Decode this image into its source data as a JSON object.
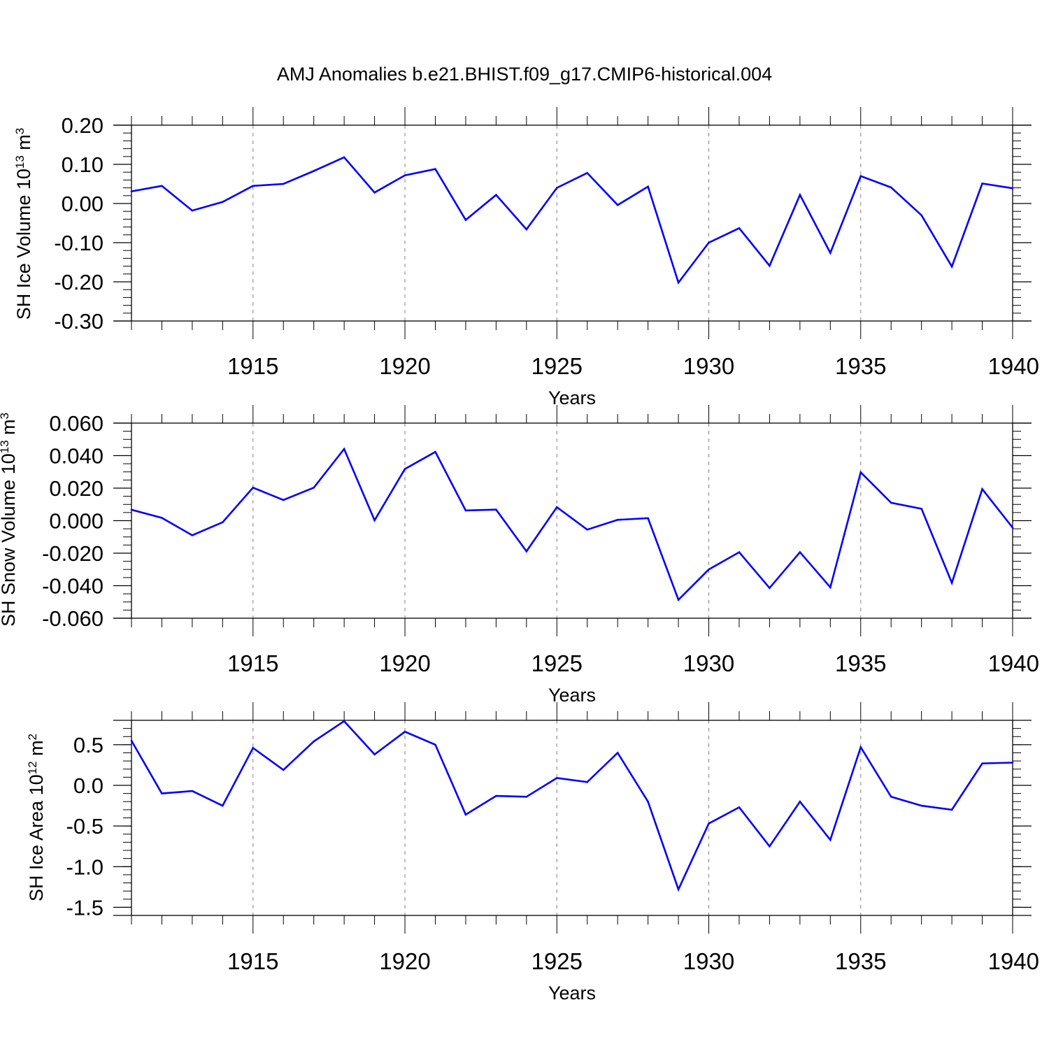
{
  "figure": {
    "title": "AMJ Anomalies b.e21.BHIST.f09_g17.CMIP6-historical.004"
  },
  "colors": {
    "series": "#0000ff",
    "axis": "#000000",
    "grid": "#808080"
  },
  "chart_data": [
    {
      "type": "line",
      "ylabel": {
        "text": "SH Ice Volume 10",
        "sup": "13",
        "unit": " m",
        "unit_sup": "3"
      },
      "xlabel": "Years",
      "xlim": [
        1911,
        1940
      ],
      "ylim": [
        -0.3,
        0.2
      ],
      "y_ticks": [
        0.2,
        0.1,
        0.0,
        -0.1,
        -0.2,
        -0.3
      ],
      "y_tick_labels": [
        "0.20",
        "0.10",
        "0.00",
        "-0.10",
        "-0.20",
        "-0.30"
      ],
      "y_minor_step": 0.02,
      "x_ticks": [
        1915,
        1920,
        1925,
        1930,
        1935,
        1940
      ],
      "x_tick_labels": [
        "1915",
        "1920",
        "1925",
        "1930",
        "1935",
        "1940"
      ],
      "x_gridlines": [
        1915,
        1920,
        1925,
        1930,
        1935
      ],
      "x": [
        1911,
        1912,
        1913,
        1914,
        1915,
        1916,
        1917,
        1918,
        1919,
        1920,
        1921,
        1922,
        1923,
        1924,
        1925,
        1926,
        1927,
        1928,
        1929,
        1930,
        1931,
        1932,
        1933,
        1934,
        1935,
        1936,
        1937,
        1938,
        1939,
        1940
      ],
      "values": [
        0.031,
        0.045,
        -0.018,
        0.004,
        0.045,
        0.05,
        0.083,
        0.118,
        0.028,
        0.072,
        0.088,
        -0.042,
        0.022,
        -0.066,
        0.04,
        0.078,
        -0.004,
        0.043,
        -0.202,
        -0.1,
        -0.063,
        -0.159,
        0.022,
        -0.126,
        0.07,
        0.041,
        -0.03,
        -0.161,
        0.051,
        0.039
      ]
    },
    {
      "type": "line",
      "ylabel": {
        "text": "SH Snow Volume 10",
        "sup": "13",
        "unit": " m",
        "unit_sup": "3"
      },
      "xlabel": "Years",
      "xlim": [
        1911,
        1940
      ],
      "ylim": [
        -0.06,
        0.06
      ],
      "y_ticks": [
        0.06,
        0.04,
        0.02,
        0.0,
        -0.02,
        -0.04,
        -0.06
      ],
      "y_tick_labels": [
        "0.060",
        "0.040",
        "0.020",
        "0.000",
        "-0.020",
        "-0.040",
        "-0.060"
      ],
      "y_minor_step": 0.005,
      "x_ticks": [
        1915,
        1920,
        1925,
        1930,
        1935,
        1940
      ],
      "x_tick_labels": [
        "1915",
        "1920",
        "1925",
        "1930",
        "1935",
        "1940"
      ],
      "x_gridlines": [
        1915,
        1920,
        1925,
        1930,
        1935
      ],
      "x": [
        1911,
        1912,
        1913,
        1914,
        1915,
        1916,
        1917,
        1918,
        1919,
        1920,
        1921,
        1922,
        1923,
        1924,
        1925,
        1926,
        1927,
        1928,
        1929,
        1930,
        1931,
        1932,
        1933,
        1934,
        1935,
        1936,
        1937,
        1938,
        1939,
        1940
      ],
      "values": [
        0.0067,
        0.0017,
        -0.009,
        -0.001,
        0.0203,
        0.0127,
        0.0203,
        0.0441,
        0.0002,
        0.0318,
        0.0423,
        0.0063,
        0.0068,
        -0.0189,
        0.0083,
        -0.0055,
        0.0005,
        0.0015,
        -0.0487,
        -0.03,
        -0.0194,
        -0.0414,
        -0.0194,
        -0.041,
        0.0297,
        0.011,
        0.0073,
        -0.0383,
        0.0194,
        -0.0043
      ]
    },
    {
      "type": "line",
      "ylabel": {
        "text": "SH Ice Area 10",
        "sup": "12",
        "unit": " m",
        "unit_sup": "2"
      },
      "xlabel": "Years",
      "xlim": [
        1911,
        1940
      ],
      "ylim": [
        -1.6,
        0.8
      ],
      "y_ticks": [
        0.5,
        0.0,
        -0.5,
        -1.0,
        -1.5
      ],
      "y_tick_labels": [
        "0.5",
        "0.0",
        "-0.5",
        "-1.0",
        "-1.5"
      ],
      "y_minor_step": 0.1,
      "x_ticks": [
        1915,
        1920,
        1925,
        1930,
        1935,
        1940
      ],
      "x_tick_labels": [
        "1915",
        "1920",
        "1925",
        "1930",
        "1935",
        "1940"
      ],
      "x_gridlines": [
        1915,
        1920,
        1925,
        1930,
        1935
      ],
      "x": [
        1911,
        1912,
        1913,
        1914,
        1915,
        1916,
        1917,
        1918,
        1919,
        1920,
        1921,
        1922,
        1923,
        1924,
        1925,
        1926,
        1927,
        1928,
        1929,
        1930,
        1931,
        1932,
        1933,
        1934,
        1935,
        1936,
        1937,
        1938,
        1939,
        1940
      ],
      "values": [
        0.55,
        -0.1,
        -0.07,
        -0.25,
        0.46,
        0.19,
        0.54,
        0.79,
        0.38,
        0.66,
        0.5,
        -0.36,
        -0.13,
        -0.14,
        0.09,
        0.04,
        0.4,
        -0.2,
        -1.28,
        -0.47,
        -0.27,
        -0.75,
        -0.2,
        -0.67,
        0.47,
        -0.14,
        -0.25,
        -0.3,
        0.27,
        0.28
      ]
    }
  ]
}
